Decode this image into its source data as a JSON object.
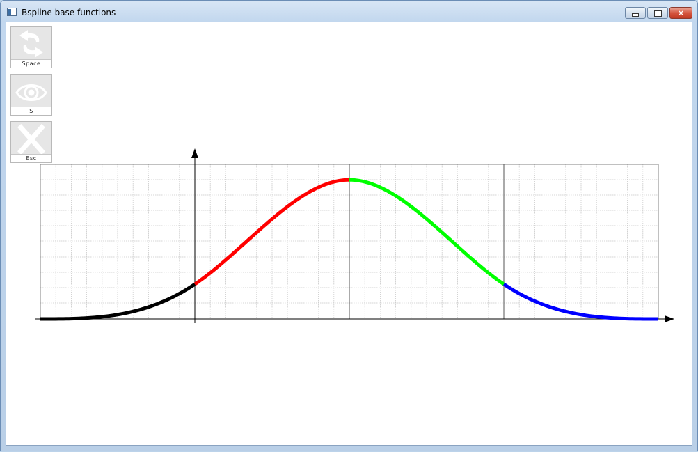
{
  "window": {
    "title": "Bspline base functions"
  },
  "toolbar": {
    "buttons": [
      {
        "label": "Space",
        "icon": "swap-arrows-icon"
      },
      {
        "label": "S",
        "icon": "eye-icon"
      },
      {
        "label": "Esc",
        "icon": "close-x-icon"
      }
    ]
  },
  "chart_data": {
    "type": "line",
    "title": "",
    "xlabel": "",
    "ylabel": "",
    "xlim": [
      -1,
      3
    ],
    "ylim": [
      0,
      1
    ],
    "knots": [
      -1,
      0,
      1,
      2,
      3
    ],
    "grid": true,
    "series": [
      {
        "color": "#000000",
        "x": [
          -1,
          -0.5,
          0
        ],
        "y": [
          0,
          0.0208,
          0.1667
        ]
      },
      {
        "color": "#ff0000",
        "x": [
          0,
          0.5,
          1
        ],
        "y": [
          0.1667,
          0.4792,
          0.6667
        ]
      },
      {
        "color": "#00ff00",
        "x": [
          1,
          1.5,
          2
        ],
        "y": [
          0.6667,
          0.4792,
          0.1667
        ]
      },
      {
        "color": "#0000ff",
        "x": [
          2,
          2.5,
          3
        ],
        "y": [
          0.1667,
          0.0208,
          0
        ]
      }
    ]
  }
}
